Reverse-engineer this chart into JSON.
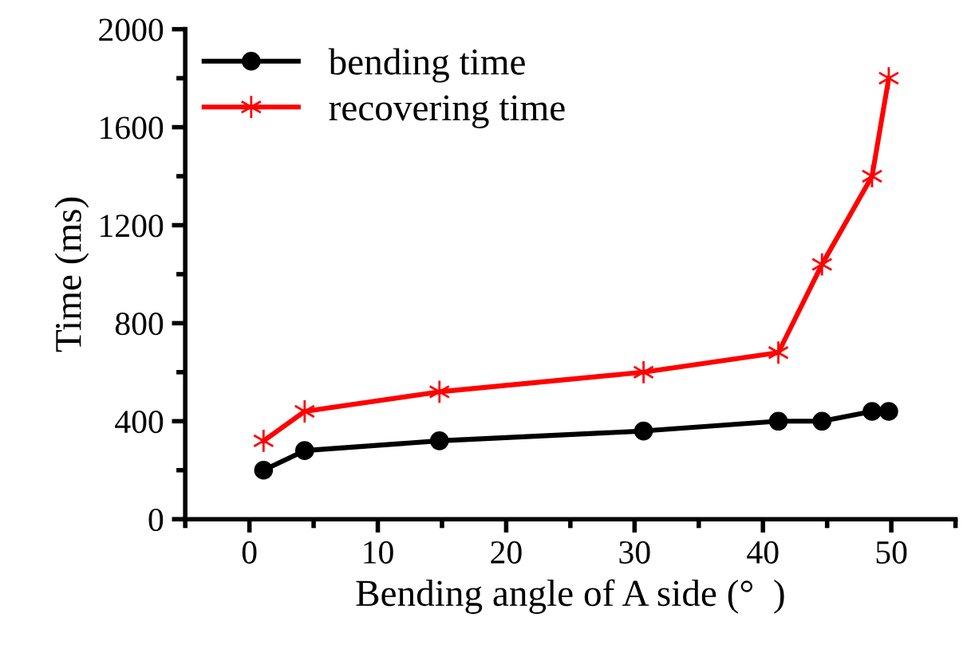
{
  "chart_data": {
    "type": "line",
    "xlabel": "Bending angle of A side (°  )",
    "ylabel": "Time (ms)",
    "x": [
      1.1,
      4.3,
      14.8,
      30.7,
      41.2,
      44.6,
      48.5,
      49.8
    ],
    "series": [
      {
        "name": "bending time",
        "color": "#000000",
        "marker": "circle",
        "values": [
          200,
          280,
          320,
          360,
          400,
          400,
          440,
          440
        ]
      },
      {
        "name": "recovering time",
        "color": "#ff0000",
        "marker": "cross",
        "values": [
          320,
          440,
          520,
          600,
          680,
          1040,
          1400,
          1800
        ]
      }
    ],
    "xlim": [
      -5,
      55
    ],
    "xticks": [
      0,
      10,
      20,
      30,
      40,
      50
    ],
    "ylim": [
      0,
      2000
    ],
    "yticks": [
      0,
      400,
      800,
      1200,
      1600,
      2000
    ],
    "grid": false,
    "legend": "top left",
    "line_style": "solid"
  }
}
